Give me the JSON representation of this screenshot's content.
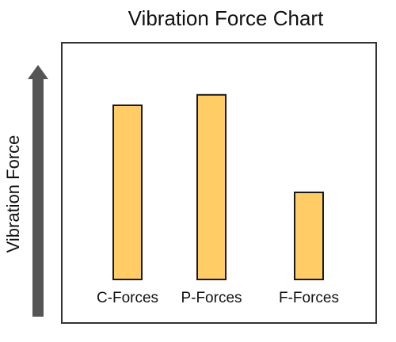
{
  "chart_data": {
    "type": "bar",
    "title": "Vibration Force Chart",
    "xlabel": "",
    "ylabel": "Vibration Force",
    "categories": [
      "C-Forces",
      "P-Forces",
      "F-Forces"
    ],
    "values": [
      100,
      106,
      50
    ],
    "ylim": [
      0,
      120
    ],
    "grid": false,
    "legend": "none",
    "colors": {
      "bar_fill": "#FFCC66",
      "bar_stroke": "#1a1a1a",
      "frame_stroke": "#333333",
      "arrow_fill": "#555555",
      "text": "#111111"
    }
  }
}
